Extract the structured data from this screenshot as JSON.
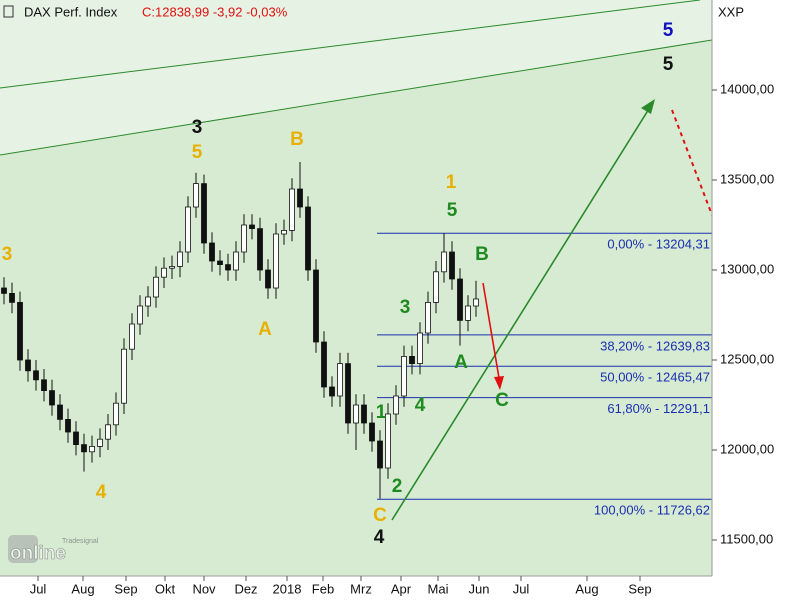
{
  "chart_data": {
    "type": "candlestick",
    "title": "DAX Perf. Index",
    "quote": "C:12838,99 -3,92 -0,03%",
    "axis_label": "XXP",
    "x": [
      2,
      6,
      10,
      14,
      18,
      22,
      26,
      30,
      34,
      38,
      42,
      46,
      50,
      54,
      58,
      62,
      66,
      70,
      74,
      78,
      82,
      86,
      90,
      94,
      98,
      102,
      106,
      110,
      114,
      118,
      122,
      126,
      130,
      134,
      138,
      142,
      146,
      150,
      154,
      158,
      162,
      166,
      170,
      174,
      178,
      182,
      186,
      190,
      194,
      198,
      202,
      206,
      210,
      214,
      218,
      222,
      226,
      230,
      234,
      238
    ],
    "open": [
      12900,
      12870,
      12820,
      12500,
      12440,
      12390,
      12330,
      12250,
      12170,
      12100,
      12030,
      11990,
      12020,
      12060,
      12140,
      12260,
      12560,
      12700,
      12800,
      12850,
      12960,
      13010,
      13020,
      13100,
      13350,
      13480,
      13150,
      13050,
      13030,
      13000,
      13100,
      13250,
      13230,
      13000,
      12900,
      13200,
      13220,
      13450,
      13350,
      13000,
      12600,
      12350,
      12300,
      12480,
      12150,
      12250,
      12150,
      12050,
      11900,
      12200,
      12300,
      12520,
      12480,
      12650,
      12820,
      12990,
      13100,
      12950,
      12720,
      12800
    ],
    "high": [
      12960,
      12930,
      12880,
      12560,
      12500,
      12450,
      12390,
      12310,
      12230,
      12160,
      12090,
      12080,
      12120,
      12200,
      12320,
      12620,
      12760,
      12860,
      12910,
      13020,
      13070,
      13080,
      13160,
      13410,
      13540,
      13530,
      13210,
      13110,
      13090,
      13160,
      13310,
      13310,
      13290,
      13060,
      13260,
      13280,
      13510,
      13600,
      13410,
      13060,
      12660,
      12410,
      12540,
      12540,
      12310,
      12310,
      12210,
      12110,
      12260,
      12360,
      12580,
      12580,
      12710,
      12880,
      13050,
      13204,
      13160,
      13010,
      12860,
      12940
    ],
    "low": [
      12810,
      12760,
      12440,
      12380,
      12330,
      12270,
      12190,
      12110,
      12040,
      11970,
      11880,
      11930,
      11960,
      12000,
      12080,
      12200,
      12500,
      12640,
      12740,
      12790,
      12900,
      12950,
      12960,
      13040,
      13290,
      13090,
      12990,
      12970,
      12940,
      12940,
      13040,
      13170,
      12940,
      12840,
      12840,
      13140,
      13160,
      13290,
      12940,
      12540,
      12290,
      12240,
      12240,
      12090,
      12000,
      12090,
      11990,
      11730,
      11840,
      12140,
      12240,
      12420,
      12420,
      12590,
      12760,
      12930,
      12890,
      12580,
      12660,
      12740
    ],
    "close": [
      12870,
      12820,
      12500,
      12440,
      12390,
      12330,
      12250,
      12170,
      12100,
      12030,
      11990,
      12020,
      12060,
      12140,
      12260,
      12560,
      12700,
      12800,
      12850,
      12960,
      13010,
      13020,
      13100,
      13350,
      13480,
      13150,
      13050,
      13030,
      13000,
      13100,
      13250,
      13230,
      13000,
      12900,
      13200,
      13220,
      13450,
      13350,
      13000,
      12600,
      12350,
      12300,
      12480,
      12150,
      12250,
      12150,
      12050,
      11900,
      12200,
      12300,
      12520,
      12480,
      12650,
      12820,
      12990,
      13100,
      12950,
      12720,
      12800,
      12838.99
    ],
    "xlim": [
      0,
      356
    ],
    "ylim": [
      11300,
      14500
    ],
    "yticks": [
      {
        "value": 11500,
        "label": "11500,00"
      },
      {
        "value": 12000,
        "label": "12000,00"
      },
      {
        "value": 12500,
        "label": "12500,00"
      },
      {
        "value": 13000,
        "label": "13000,00"
      },
      {
        "value": 13500,
        "label": "13500,00"
      },
      {
        "value": 14000,
        "label": "14000,00"
      }
    ],
    "xticks": [
      {
        "value": 19,
        "label": "Jul"
      },
      {
        "value": 41.5,
        "label": "Aug"
      },
      {
        "value": 63,
        "label": "Sep"
      },
      {
        "value": 82.5,
        "label": "Okt"
      },
      {
        "value": 102,
        "label": "Nov"
      },
      {
        "value": 123,
        "label": "Dez"
      },
      {
        "value": 143.5,
        "label": "2018"
      },
      {
        "value": 161.5,
        "label": "Feb"
      },
      {
        "value": 180.5,
        "label": "Mrz"
      },
      {
        "value": 200.5,
        "label": "Apr"
      },
      {
        "value": 219,
        "label": "Mai"
      },
      {
        "value": 239.5,
        "label": "Jun"
      },
      {
        "value": 260.5,
        "label": "Jul"
      },
      {
        "value": 293.5,
        "label": "Aug"
      },
      {
        "value": 320,
        "label": "Sep"
      }
    ],
    "fib_levels": [
      {
        "value": 13204.31,
        "label": "0,00% - 13204,31"
      },
      {
        "value": 12639.83,
        "label": "38,20% - 12639,83"
      },
      {
        "value": 12465.47,
        "label": "50,00% - 12465,47"
      },
      {
        "value": 12291.1,
        "label": "61,80% - 12291,1"
      },
      {
        "value": 11726.62,
        "label": "100,00% - 11726,62"
      }
    ],
    "annotations": [
      {
        "text": "3",
        "color": "#e8b000"
      },
      {
        "text": "4",
        "color": "#e8b000"
      },
      {
        "text": "3",
        "color": "#111111"
      },
      {
        "text": "5",
        "color": "#e8b000"
      },
      {
        "text": "B",
        "color": "#e8b000"
      },
      {
        "text": "A",
        "color": "#e8b000"
      },
      {
        "text": "1",
        "color": "#e8b000"
      },
      {
        "text": "5",
        "color": "#1f8a1f"
      },
      {
        "text": "B",
        "color": "#1f8a1f"
      },
      {
        "text": "3",
        "color": "#1f8a1f"
      },
      {
        "text": "A",
        "color": "#1f8a1f"
      },
      {
        "text": "4",
        "color": "#1f8a1f"
      },
      {
        "text": "1",
        "color": "#1f8a1f"
      },
      {
        "text": "C",
        "color": "#1f8a1f"
      },
      {
        "text": "2",
        "color": "#1f8a1f"
      },
      {
        "text": "C",
        "color": "#e8b000"
      },
      {
        "text": "4",
        "color": "#111111"
      },
      {
        "text": "5",
        "color": "#1010c0"
      },
      {
        "text": "5",
        "color": "#111111"
      }
    ],
    "logo": {
      "brand": "Tradesignal",
      "name": "online"
    }
  }
}
